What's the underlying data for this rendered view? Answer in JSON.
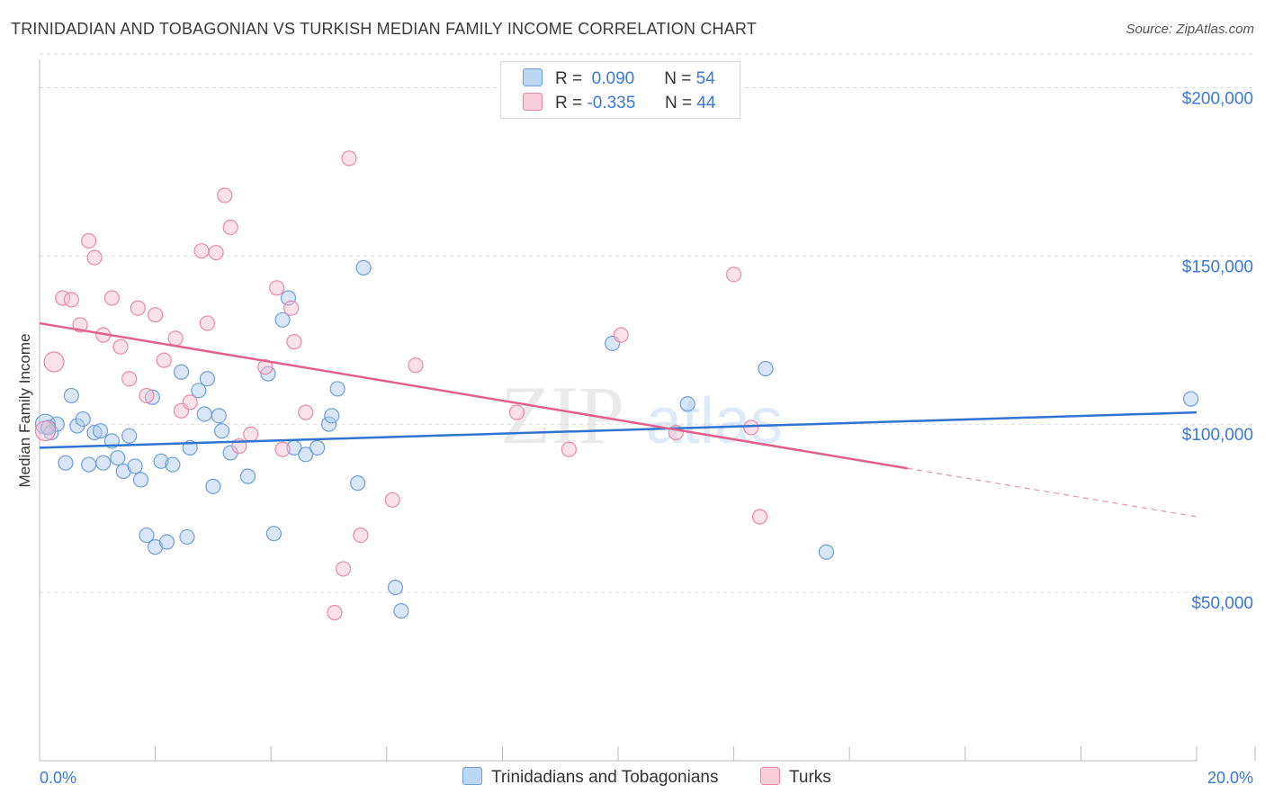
{
  "title": "TRINIDADIAN AND TOBAGONIAN VS TURKISH MEDIAN FAMILY INCOME CORRELATION CHART",
  "source": "Source: ZipAtlas.com",
  "watermark": {
    "zip": "ZIP",
    "atlas": "atlas"
  },
  "legend_top": {
    "rows": [
      {
        "r_label": "R =",
        "r_value": "0.090",
        "n_label": "N =",
        "n_value": "54"
      },
      {
        "r_label": "R =",
        "r_value": "-0.335",
        "n_label": "N =",
        "n_value": "44"
      }
    ]
  },
  "legend_bottom": {
    "items": [
      {
        "label": "Trinidadians and Tobagonians"
      },
      {
        "label": "Turks"
      }
    ]
  },
  "colors": {
    "blue_fill": "#a8c8f0",
    "blue_stroke": "#6f9fd8",
    "blue_line": "#2f74d0",
    "pink_fill": "#f6bfd0",
    "pink_stroke": "#e88aa8",
    "pink_line": "#e0628a",
    "tick_label": "#3b78d8",
    "grid": "#dddddd"
  },
  "chart_data": {
    "type": "scatter",
    "title": "TRINIDADIAN AND TOBAGONIAN VS TURKISH MEDIAN FAMILY INCOME CORRELATION CHART",
    "xlabel": "",
    "ylabel": "Median Family Income",
    "xlim": [
      0,
      20
    ],
    "ylim": [
      0,
      210000
    ],
    "x_tick_labels": [
      "0.0%",
      "20.0%"
    ],
    "y_ticks": [
      50000,
      100000,
      150000,
      200000
    ],
    "y_tick_labels": [
      "$50,000",
      "$100,000",
      "$150,000",
      "$200,000"
    ],
    "grid": true,
    "series": [
      {
        "name": "Trinidadians and Tobagonians",
        "color": "blue",
        "r": 0.09,
        "n": 54,
        "trend": {
          "x0": 0,
          "y0": 93000,
          "x1": 20,
          "y1": 103500,
          "solid_until": 20
        },
        "points": [
          [
            0.1,
            100000
          ],
          [
            0.2,
            97500
          ],
          [
            0.3,
            100000
          ],
          [
            0.45,
            88500
          ],
          [
            0.55,
            108500
          ],
          [
            0.65,
            99500
          ],
          [
            0.75,
            101500
          ],
          [
            0.85,
            88000
          ],
          [
            0.95,
            97500
          ],
          [
            1.05,
            98000
          ],
          [
            1.1,
            88500
          ],
          [
            1.25,
            95000
          ],
          [
            1.35,
            90000
          ],
          [
            1.45,
            86000
          ],
          [
            1.55,
            96500
          ],
          [
            1.65,
            87500
          ],
          [
            1.75,
            83500
          ],
          [
            1.85,
            67000
          ],
          [
            1.95,
            108000
          ],
          [
            2.0,
            63500
          ],
          [
            2.1,
            89000
          ],
          [
            2.2,
            65000
          ],
          [
            2.3,
            88000
          ],
          [
            2.45,
            115500
          ],
          [
            2.55,
            66500
          ],
          [
            2.6,
            93000
          ],
          [
            2.75,
            110000
          ],
          [
            2.85,
            103000
          ],
          [
            2.9,
            113500
          ],
          [
            3.0,
            81500
          ],
          [
            3.1,
            102500
          ],
          [
            3.15,
            98000
          ],
          [
            3.3,
            91500
          ],
          [
            3.6,
            84500
          ],
          [
            3.95,
            115000
          ],
          [
            4.05,
            67500
          ],
          [
            4.2,
            131000
          ],
          [
            4.3,
            137500
          ],
          [
            4.4,
            93000
          ],
          [
            4.6,
            91000
          ],
          [
            4.8,
            93000
          ],
          [
            5.0,
            100000
          ],
          [
            5.05,
            102500
          ],
          [
            5.15,
            110500
          ],
          [
            5.5,
            82500
          ],
          [
            5.6,
            146500
          ],
          [
            6.15,
            51500
          ],
          [
            6.25,
            44500
          ],
          [
            9.9,
            124000
          ],
          [
            11.2,
            106000
          ],
          [
            12.55,
            116500
          ],
          [
            13.6,
            62000
          ],
          [
            19.9,
            107500
          ],
          [
            0.15,
            99000
          ]
        ]
      },
      {
        "name": "Turks",
        "color": "pink",
        "r": -0.335,
        "n": 44,
        "trend": {
          "x0": 0,
          "y0": 130000,
          "x1": 20,
          "y1": 72500,
          "solid_until": 15
        },
        "points": [
          [
            0.1,
            98000
          ],
          [
            0.25,
            118500
          ],
          [
            0.4,
            137500
          ],
          [
            0.55,
            137000
          ],
          [
            0.7,
            129500
          ],
          [
            0.85,
            154500
          ],
          [
            0.95,
            149500
          ],
          [
            1.1,
            126500
          ],
          [
            1.25,
            137500
          ],
          [
            1.4,
            123000
          ],
          [
            1.55,
            113500
          ],
          [
            1.7,
            134500
          ],
          [
            1.85,
            108500
          ],
          [
            2.0,
            132500
          ],
          [
            2.15,
            119000
          ],
          [
            2.35,
            125500
          ],
          [
            2.45,
            104000
          ],
          [
            2.6,
            106500
          ],
          [
            2.8,
            151500
          ],
          [
            2.9,
            130000
          ],
          [
            3.05,
            151000
          ],
          [
            3.2,
            168000
          ],
          [
            3.3,
            158500
          ],
          [
            3.45,
            93500
          ],
          [
            3.65,
            97000
          ],
          [
            3.9,
            117000
          ],
          [
            4.1,
            140500
          ],
          [
            4.2,
            92500
          ],
          [
            4.35,
            134500
          ],
          [
            4.4,
            124500
          ],
          [
            4.6,
            103500
          ],
          [
            5.1,
            44000
          ],
          [
            5.25,
            57000
          ],
          [
            5.35,
            179000
          ],
          [
            5.55,
            67000
          ],
          [
            6.1,
            77500
          ],
          [
            6.5,
            117500
          ],
          [
            8.25,
            103500
          ],
          [
            9.15,
            92500
          ],
          [
            10.05,
            126500
          ],
          [
            11.0,
            97500
          ],
          [
            12.0,
            144500
          ],
          [
            12.3,
            99000
          ],
          [
            12.45,
            72500
          ]
        ]
      }
    ]
  }
}
